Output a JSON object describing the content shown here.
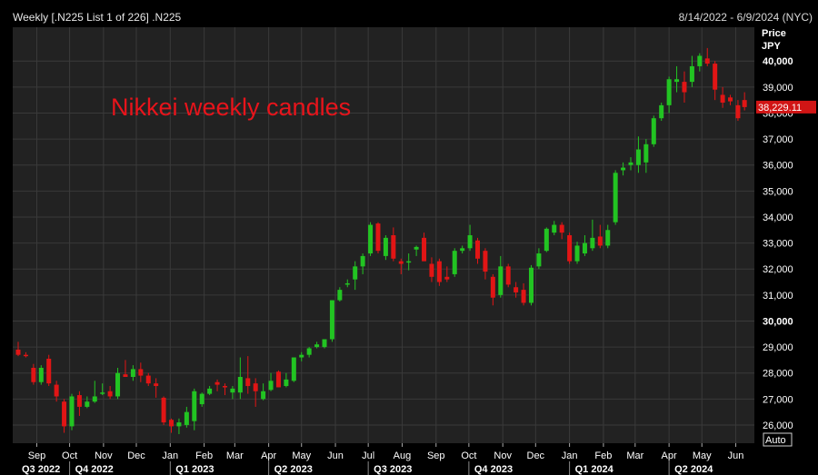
{
  "header": {
    "left_text": "Weekly [.N225 List 1 of 226] .N225",
    "right_text": "8/14/2022 - 6/9/2024 (NYC)"
  },
  "axis": {
    "price_label": "Price",
    "currency_label": "JPY",
    "auto_label": "Auto"
  },
  "colors": {
    "up": "#22c422",
    "down": "#e11515",
    "background": "#222222",
    "grid": "#3a3a3a",
    "last_price_box": "#d11515"
  },
  "chart_data": {
    "type": "candlestick",
    "title": "Nikkei weekly candles",
    "ylabel": "Price JPY",
    "ylim": [
      25300,
      41300
    ],
    "yticks": [
      26000,
      27000,
      28000,
      29000,
      30000,
      31000,
      32000,
      33000,
      34000,
      35000,
      36000,
      37000,
      38000,
      39000,
      40000
    ],
    "ytick_labels": [
      "26,000",
      "27,000",
      "28,000",
      "29,000",
      "30,000",
      "31,000",
      "32,000",
      "33,000",
      "34,000",
      "35,000",
      "36,000",
      "37,000",
      "38,000",
      "39,000",
      "40,000"
    ],
    "bold_ticks": [
      "30,000",
      "40,000"
    ],
    "last_price": 38229.11,
    "last_price_label": "38,229.11",
    "x_start": "2022-08-14",
    "x_end": "2024-06-09",
    "month_ticks": [
      {
        "label": "Sep",
        "date": "2022-09-01"
      },
      {
        "label": "Oct",
        "date": "2022-10-01"
      },
      {
        "label": "Nov",
        "date": "2022-11-01"
      },
      {
        "label": "Dec",
        "date": "2022-12-01"
      },
      {
        "label": "Jan",
        "date": "2023-01-01"
      },
      {
        "label": "Feb",
        "date": "2023-02-01"
      },
      {
        "label": "Mar",
        "date": "2023-03-01"
      },
      {
        "label": "Apr",
        "date": "2023-04-01"
      },
      {
        "label": "May",
        "date": "2023-05-01"
      },
      {
        "label": "Jun",
        "date": "2023-06-01"
      },
      {
        "label": "Jul",
        "date": "2023-07-01"
      },
      {
        "label": "Aug",
        "date": "2023-08-01"
      },
      {
        "label": "Sep",
        "date": "2023-09-01"
      },
      {
        "label": "Oct",
        "date": "2023-10-01"
      },
      {
        "label": "Nov",
        "date": "2023-11-01"
      },
      {
        "label": "Dec",
        "date": "2023-12-01"
      },
      {
        "label": "Jan",
        "date": "2024-01-01"
      },
      {
        "label": "Feb",
        "date": "2024-02-01"
      },
      {
        "label": "Mar",
        "date": "2024-03-01"
      },
      {
        "label": "Apr",
        "date": "2024-04-01"
      },
      {
        "label": "May",
        "date": "2024-05-01"
      },
      {
        "label": "Jun",
        "date": "2024-06-01"
      }
    ],
    "quarters": [
      {
        "label": "Q3 2022",
        "date": "2022-08-14"
      },
      {
        "label": "Q4 2022",
        "date": "2022-10-01"
      },
      {
        "label": "Q1 2023",
        "date": "2023-01-01"
      },
      {
        "label": "Q2 2023",
        "date": "2023-04-01"
      },
      {
        "label": "Q3 2023",
        "date": "2023-07-01"
      },
      {
        "label": "Q4 2023",
        "date": "2023-10-01"
      },
      {
        "label": "Q1 2024",
        "date": "2024-01-01"
      },
      {
        "label": "Q2 2024",
        "date": "2024-04-01"
      }
    ],
    "candles": [
      {
        "date": "2022-08-15",
        "o": 28900,
        "h": 29200,
        "l": 28650,
        "c": 28700
      },
      {
        "date": "2022-08-22",
        "o": 28700,
        "h": 28800,
        "l": 28600,
        "c": 28650
      },
      {
        "date": "2022-08-29",
        "o": 28200,
        "h": 28350,
        "l": 27550,
        "c": 27650
      },
      {
        "date": "2022-09-05",
        "o": 27650,
        "h": 28300,
        "l": 27550,
        "c": 28200
      },
      {
        "date": "2022-09-12",
        "o": 28550,
        "h": 28700,
        "l": 27500,
        "c": 27600
      },
      {
        "date": "2022-09-19",
        "o": 27550,
        "h": 27700,
        "l": 26900,
        "c": 27100
      },
      {
        "date": "2022-09-26",
        "o": 26900,
        "h": 27000,
        "l": 25700,
        "c": 25950
      },
      {
        "date": "2022-10-03",
        "o": 25950,
        "h": 27200,
        "l": 25800,
        "c": 27100
      },
      {
        "date": "2022-10-10",
        "o": 27150,
        "h": 27300,
        "l": 26350,
        "c": 26700
      },
      {
        "date": "2022-10-17",
        "o": 26700,
        "h": 27100,
        "l": 26650,
        "c": 26900
      },
      {
        "date": "2022-10-24",
        "o": 26900,
        "h": 27700,
        "l": 26850,
        "c": 27100
      },
      {
        "date": "2022-10-31",
        "o": 27250,
        "h": 27600,
        "l": 27150,
        "c": 27250
      },
      {
        "date": "2022-11-07",
        "o": 27300,
        "h": 27500,
        "l": 27000,
        "c": 27100
      },
      {
        "date": "2022-11-14",
        "o": 27100,
        "h": 28200,
        "l": 27000,
        "c": 28000
      },
      {
        "date": "2022-11-21",
        "o": 27950,
        "h": 28500,
        "l": 27850,
        "c": 27850
      },
      {
        "date": "2022-11-28",
        "o": 27850,
        "h": 28300,
        "l": 27700,
        "c": 28150
      },
      {
        "date": "2022-12-05",
        "o": 28150,
        "h": 28400,
        "l": 27650,
        "c": 27900
      },
      {
        "date": "2022-12-12",
        "o": 27900,
        "h": 28000,
        "l": 27500,
        "c": 27600
      },
      {
        "date": "2022-12-19",
        "o": 27600,
        "h": 27800,
        "l": 27050,
        "c": 27500
      },
      {
        "date": "2022-12-26",
        "o": 27050,
        "h": 27100,
        "l": 26000,
        "c": 26100
      },
      {
        "date": "2023-01-02",
        "o": 26200,
        "h": 26250,
        "l": 25700,
        "c": 25950
      },
      {
        "date": "2023-01-09",
        "o": 25950,
        "h": 26250,
        "l": 25650,
        "c": 26100
      },
      {
        "date": "2023-01-16",
        "o": 26000,
        "h": 26700,
        "l": 25900,
        "c": 26500
      },
      {
        "date": "2023-01-23",
        "o": 26150,
        "h": 27400,
        "l": 25800,
        "c": 27300
      },
      {
        "date": "2023-01-30",
        "o": 26800,
        "h": 27250,
        "l": 26700,
        "c": 27200
      },
      {
        "date": "2023-02-06",
        "o": 27200,
        "h": 27500,
        "l": 27150,
        "c": 27400
      },
      {
        "date": "2023-02-13",
        "o": 27650,
        "h": 27750,
        "l": 27300,
        "c": 27550
      },
      {
        "date": "2023-02-20",
        "o": 27500,
        "h": 27600,
        "l": 27150,
        "c": 27450
      },
      {
        "date": "2023-02-27",
        "o": 27250,
        "h": 27500,
        "l": 27000,
        "c": 27400
      },
      {
        "date": "2023-03-06",
        "o": 27250,
        "h": 28600,
        "l": 27000,
        "c": 27850
      },
      {
        "date": "2023-03-13",
        "o": 27800,
        "h": 28650,
        "l": 27200,
        "c": 27500
      },
      {
        "date": "2023-03-20",
        "o": 27600,
        "h": 27800,
        "l": 26700,
        "c": 27300
      },
      {
        "date": "2023-03-27",
        "o": 27000,
        "h": 27600,
        "l": 26950,
        "c": 27300
      },
      {
        "date": "2023-04-03",
        "o": 27350,
        "h": 28000,
        "l": 27300,
        "c": 27700
      },
      {
        "date": "2023-04-10",
        "o": 28050,
        "h": 28100,
        "l": 27450,
        "c": 27450
      },
      {
        "date": "2023-04-17",
        "o": 27500,
        "h": 28000,
        "l": 27450,
        "c": 27750
      },
      {
        "date": "2023-04-24",
        "o": 27700,
        "h": 28600,
        "l": 27650,
        "c": 28600
      },
      {
        "date": "2023-05-01",
        "o": 28600,
        "h": 28800,
        "l": 28450,
        "c": 28700
      },
      {
        "date": "2023-05-08",
        "o": 28700,
        "h": 29000,
        "l": 28600,
        "c": 28950
      },
      {
        "date": "2023-05-15",
        "o": 29000,
        "h": 29200,
        "l": 28950,
        "c": 29100
      },
      {
        "date": "2023-05-22",
        "o": 29000,
        "h": 29300,
        "l": 28950,
        "c": 29300
      },
      {
        "date": "2023-05-29",
        "o": 29300,
        "h": 30800,
        "l": 29200,
        "c": 30800
      },
      {
        "date": "2023-06-05",
        "o": 30800,
        "h": 31300,
        "l": 30750,
        "c": 31200
      },
      {
        "date": "2023-06-12",
        "o": 31400,
        "h": 31600,
        "l": 31300,
        "c": 31450
      },
      {
        "date": "2023-06-19",
        "o": 31600,
        "h": 32300,
        "l": 31200,
        "c": 32100
      },
      {
        "date": "2023-06-26",
        "o": 32100,
        "h": 32600,
        "l": 31800,
        "c": 32500
      },
      {
        "date": "2023-07-03",
        "o": 32600,
        "h": 33800,
        "l": 32500,
        "c": 33700
      },
      {
        "date": "2023-07-10",
        "o": 33750,
        "h": 33800,
        "l": 32600,
        "c": 32700
      },
      {
        "date": "2023-07-17",
        "o": 32500,
        "h": 33300,
        "l": 32350,
        "c": 33200
      },
      {
        "date": "2023-07-24",
        "o": 33300,
        "h": 33600,
        "l": 32300,
        "c": 32400
      },
      {
        "date": "2023-07-31",
        "o": 32300,
        "h": 32400,
        "l": 31800,
        "c": 32200
      },
      {
        "date": "2023-08-07",
        "o": 32250,
        "h": 32600,
        "l": 31950,
        "c": 32300
      },
      {
        "date": "2023-08-14",
        "o": 32750,
        "h": 32900,
        "l": 32500,
        "c": 32850
      },
      {
        "date": "2023-08-21",
        "o": 33200,
        "h": 33400,
        "l": 32300,
        "c": 32300
      },
      {
        "date": "2023-08-28",
        "o": 32200,
        "h": 32450,
        "l": 31500,
        "c": 31700
      },
      {
        "date": "2023-09-04",
        "o": 32300,
        "h": 32400,
        "l": 31350,
        "c": 31500
      },
      {
        "date": "2023-09-11",
        "o": 31700,
        "h": 32100,
        "l": 31500,
        "c": 31600
      },
      {
        "date": "2023-09-18",
        "o": 31800,
        "h": 32800,
        "l": 31700,
        "c": 32700
      },
      {
        "date": "2023-09-25",
        "o": 32700,
        "h": 32900,
        "l": 32600,
        "c": 32800
      },
      {
        "date": "2023-10-02",
        "o": 32800,
        "h": 33700,
        "l": 32700,
        "c": 33300
      },
      {
        "date": "2023-10-09",
        "o": 33100,
        "h": 33200,
        "l": 32200,
        "c": 32400
      },
      {
        "date": "2023-10-16",
        "o": 32700,
        "h": 32800,
        "l": 31600,
        "c": 31900
      },
      {
        "date": "2023-10-23",
        "o": 31700,
        "h": 31800,
        "l": 30600,
        "c": 30900
      },
      {
        "date": "2023-10-30",
        "o": 31000,
        "h": 32500,
        "l": 30900,
        "c": 32100
      },
      {
        "date": "2023-11-06",
        "o": 32100,
        "h": 32200,
        "l": 31300,
        "c": 31400
      },
      {
        "date": "2023-11-13",
        "o": 31300,
        "h": 31500,
        "l": 30900,
        "c": 31100
      },
      {
        "date": "2023-11-20",
        "o": 31200,
        "h": 31450,
        "l": 30600,
        "c": 30700
      },
      {
        "date": "2023-11-27",
        "o": 30700,
        "h": 32150,
        "l": 30600,
        "c": 32050
      },
      {
        "date": "2023-12-04",
        "o": 32100,
        "h": 32800,
        "l": 32000,
        "c": 32600
      },
      {
        "date": "2023-12-11",
        "o": 32700,
        "h": 33600,
        "l": 32650,
        "c": 33550
      },
      {
        "date": "2023-12-18",
        "o": 33400,
        "h": 33850,
        "l": 33300,
        "c": 33700
      },
      {
        "date": "2023-12-25",
        "o": 33700,
        "h": 33800,
        "l": 33150,
        "c": 33400
      },
      {
        "date": "2024-01-01",
        "o": 33300,
        "h": 33400,
        "l": 32200,
        "c": 32300
      },
      {
        "date": "2024-01-08",
        "o": 32300,
        "h": 33050,
        "l": 32200,
        "c": 32900
      },
      {
        "date": "2024-01-15",
        "o": 32600,
        "h": 33300,
        "l": 32500,
        "c": 33000
      },
      {
        "date": "2024-01-22",
        "o": 32800,
        "h": 33900,
        "l": 32700,
        "c": 33200
      },
      {
        "date": "2024-01-29",
        "o": 33250,
        "h": 33700,
        "l": 32800,
        "c": 32900
      },
      {
        "date": "2024-02-05",
        "o": 32900,
        "h": 33700,
        "l": 32800,
        "c": 33500
      },
      {
        "date": "2024-02-12",
        "o": 33800,
        "h": 35800,
        "l": 33700,
        "c": 35700
      },
      {
        "date": "2024-02-19",
        "o": 35800,
        "h": 36100,
        "l": 35600,
        "c": 35900
      },
      {
        "date": "2024-02-26",
        "o": 36000,
        "h": 36300,
        "l": 35800,
        "c": 36100
      },
      {
        "date": "2024-03-04",
        "o": 36000,
        "h": 37100,
        "l": 35700,
        "c": 36600
      },
      {
        "date": "2024-03-11",
        "o": 36100,
        "h": 37000,
        "l": 35700,
        "c": 36800
      },
      {
        "date": "2024-03-18",
        "o": 36800,
        "h": 37900,
        "l": 36700,
        "c": 37800
      },
      {
        "date": "2024-03-25",
        "o": 37800,
        "h": 38400,
        "l": 37700,
        "c": 38300
      },
      {
        "date": "2024-04-01",
        "o": 38300,
        "h": 39400,
        "l": 38000,
        "c": 39300
      },
      {
        "date": "2024-04-08",
        "o": 39200,
        "h": 39800,
        "l": 38800,
        "c": 39300
      },
      {
        "date": "2024-04-15",
        "o": 39200,
        "h": 39600,
        "l": 38400,
        "c": 38800
      },
      {
        "date": "2024-04-22",
        "o": 39200,
        "h": 40200,
        "l": 39000,
        "c": 39800
      },
      {
        "date": "2024-04-29",
        "o": 39800,
        "h": 40300,
        "l": 39600,
        "c": 40200
      },
      {
        "date": "2024-05-06",
        "o": 40100,
        "h": 40500,
        "l": 39800,
        "c": 39900
      },
      {
        "date": "2024-05-13",
        "o": 39900,
        "h": 40000,
        "l": 38500,
        "c": 38900
      },
      {
        "date": "2024-05-20",
        "o": 38700,
        "h": 39000,
        "l": 38200,
        "c": 38400
      },
      {
        "date": "2024-05-27",
        "o": 38600,
        "h": 38700,
        "l": 38300,
        "c": 38450
      },
      {
        "date": "2024-06-03",
        "o": 38300,
        "h": 38500,
        "l": 37700,
        "c": 37800
      },
      {
        "date": "2024-06-09",
        "o": 38500,
        "h": 38800,
        "l": 38100,
        "c": 38229.11
      }
    ]
  }
}
